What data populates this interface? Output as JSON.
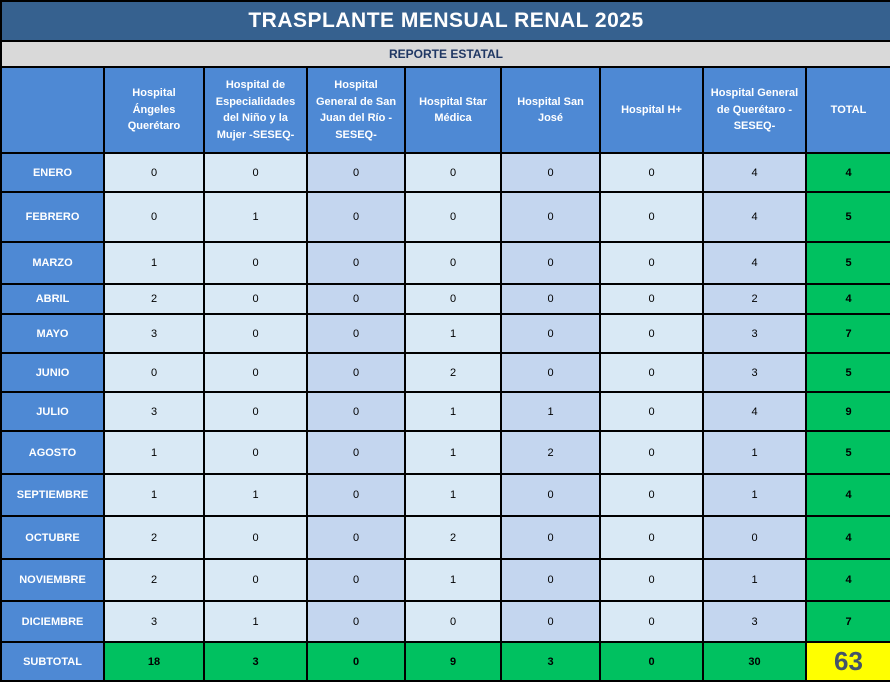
{
  "title": "TRASPLANTE MENSUAL RENAL 2025",
  "subtitle": "REPORTE ESTATAL",
  "columns": [
    "",
    "Hospital Ángeles Querétaro",
    "Hospital de Especialidades del Niño y la Mujer -SESEQ-",
    "Hospital General de San Juan del Río -SESEQ-",
    "Hospital Star Médica",
    "Hospital San José",
    "Hospital H+",
    "Hospital General de Querétaro - SESEQ-",
    "TOTAL"
  ],
  "rows": [
    {
      "label": "ENERO",
      "values": [
        0,
        0,
        0,
        0,
        0,
        0,
        4
      ],
      "total": 4
    },
    {
      "label": "FEBRERO",
      "values": [
        0,
        1,
        0,
        0,
        0,
        0,
        4
      ],
      "total": 5
    },
    {
      "label": "MARZO",
      "values": [
        1,
        0,
        0,
        0,
        0,
        0,
        4
      ],
      "total": 5
    },
    {
      "label": "ABRIL",
      "values": [
        2,
        0,
        0,
        0,
        0,
        0,
        2
      ],
      "total": 4
    },
    {
      "label": "MAYO",
      "values": [
        3,
        0,
        0,
        1,
        0,
        0,
        3
      ],
      "total": 7
    },
    {
      "label": "JUNIO",
      "values": [
        0,
        0,
        0,
        2,
        0,
        0,
        3
      ],
      "total": 5
    },
    {
      "label": "JULIO",
      "values": [
        3,
        0,
        0,
        1,
        1,
        0,
        4
      ],
      "total": 9
    },
    {
      "label": "AGOSTO",
      "values": [
        1,
        0,
        0,
        1,
        2,
        0,
        1
      ],
      "total": 5
    },
    {
      "label": "SEPTIEMBRE",
      "values": [
        1,
        1,
        0,
        1,
        0,
        0,
        1
      ],
      "total": 4
    },
    {
      "label": "OCTUBRE",
      "values": [
        2,
        0,
        0,
        2,
        0,
        0,
        0
      ],
      "total": 4
    },
    {
      "label": "NOVIEMBRE",
      "values": [
        2,
        0,
        0,
        1,
        0,
        0,
        1
      ],
      "total": 4
    },
    {
      "label": "DICIEMBRE",
      "values": [
        3,
        1,
        0,
        0,
        0,
        0,
        3
      ],
      "total": 7
    }
  ],
  "subtotal": {
    "label": "SUBTOTAL",
    "values": [
      18,
      3,
      0,
      9,
      3,
      0,
      30
    ],
    "total": 63
  },
  "colors": {
    "title-bg": "#36618F",
    "subtitle-bg": "#D9D9D9",
    "subtitle-text": "#203864",
    "header-bg": "#4E89D4",
    "cell-light": "#D9E9F5",
    "cell-mid": "#C4D6EF",
    "total-green": "#00C160",
    "grand-total-bg": "#FFFF00",
    "grand-total-text": "#44546A"
  }
}
